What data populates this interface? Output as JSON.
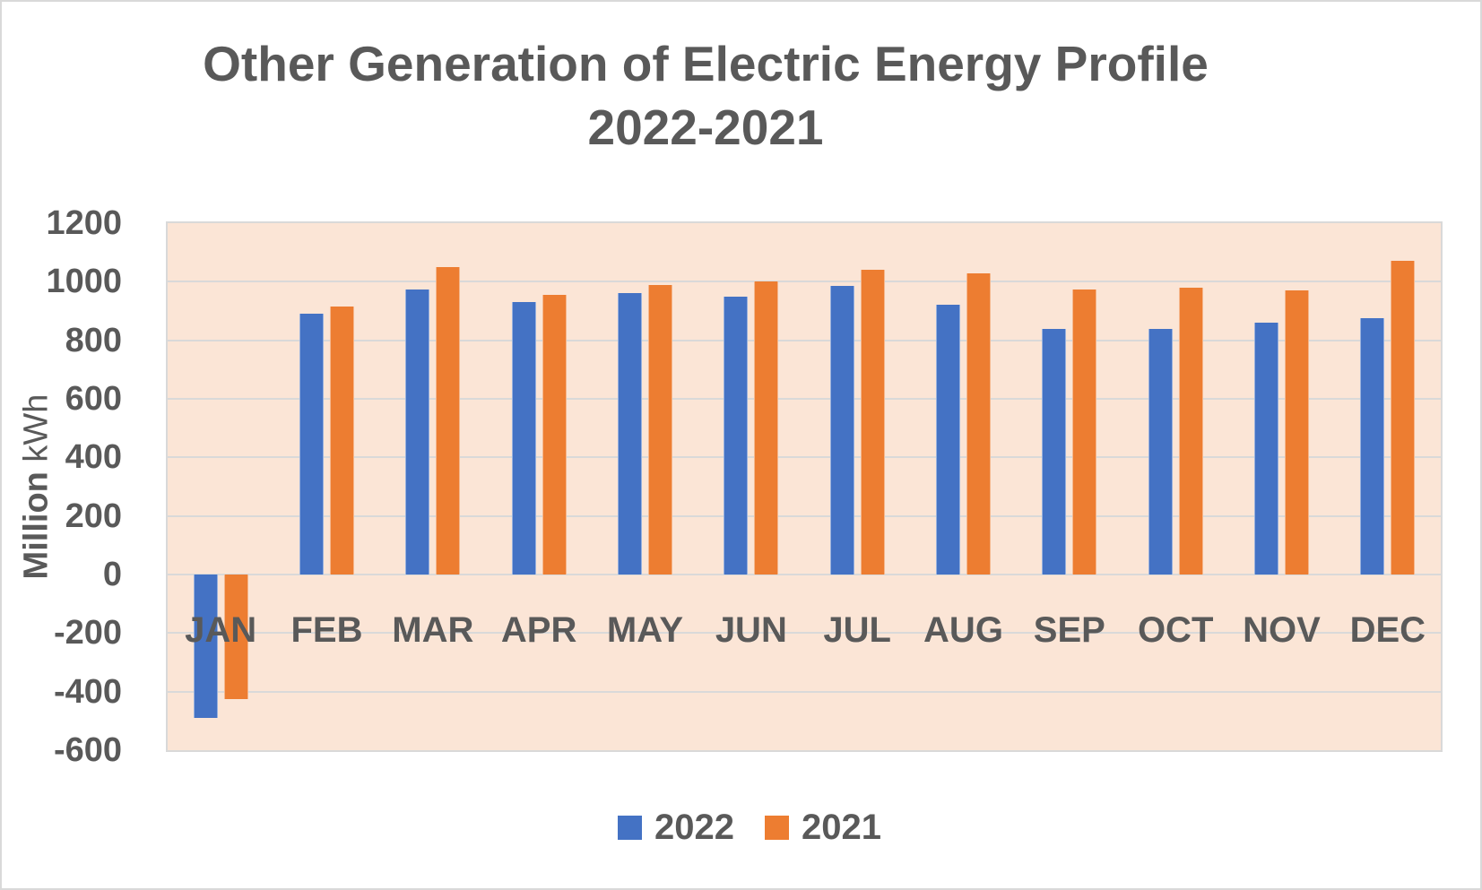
{
  "page": {
    "background": "#FFFFFF",
    "border_color": "#D9D9D9"
  },
  "title": {
    "line1": "Other Generation of Electric Energy Profile",
    "line2": "2022-2021",
    "color": "#595959"
  },
  "y_axis": {
    "title_bold": "Million",
    "title_regular": " kWh",
    "tick_labels": [
      "1200",
      "1000",
      "800",
      "600",
      "400",
      "200",
      "0",
      "-200",
      "-400",
      "-600"
    ]
  },
  "x_axis": {
    "labels": [
      "JAN",
      "FEB",
      "MAR",
      "APR",
      "MAY",
      "JUN",
      "JUL",
      "AUG",
      "SEP",
      "OCT",
      "NOV",
      "DEC"
    ]
  },
  "legend": {
    "items": [
      {
        "label": "2022",
        "color": "#4472C4"
      },
      {
        "label": "2021",
        "color": "#ED7D31"
      }
    ]
  },
  "chart_data": {
    "type": "bar",
    "title": "Other Generation of Electric Energy Profile 2022-2021",
    "categories": [
      "JAN",
      "FEB",
      "MAR",
      "APR",
      "MAY",
      "JUN",
      "JUL",
      "AUG",
      "SEP",
      "OCT",
      "NOV",
      "DEC"
    ],
    "series": [
      {
        "name": "2022",
        "color": "#4472C4",
        "values": [
          -490,
          890,
          975,
          930,
          960,
          950,
          985,
          920,
          840,
          840,
          860,
          875
        ]
      },
      {
        "name": "2021",
        "color": "#ED7D31",
        "values": [
          -425,
          915,
          1050,
          955,
          990,
          1000,
          1040,
          1030,
          975,
          980,
          970,
          1070
        ]
      }
    ],
    "xlabel": "",
    "ylabel": "Million kWh",
    "ylim": [
      -600,
      1200
    ],
    "ytick_step": 200,
    "grid": true,
    "gridline_color": "#D9D9D9",
    "plot_background": "#FBE5D6",
    "text_color": "#595959",
    "legend_position": "bottom"
  }
}
